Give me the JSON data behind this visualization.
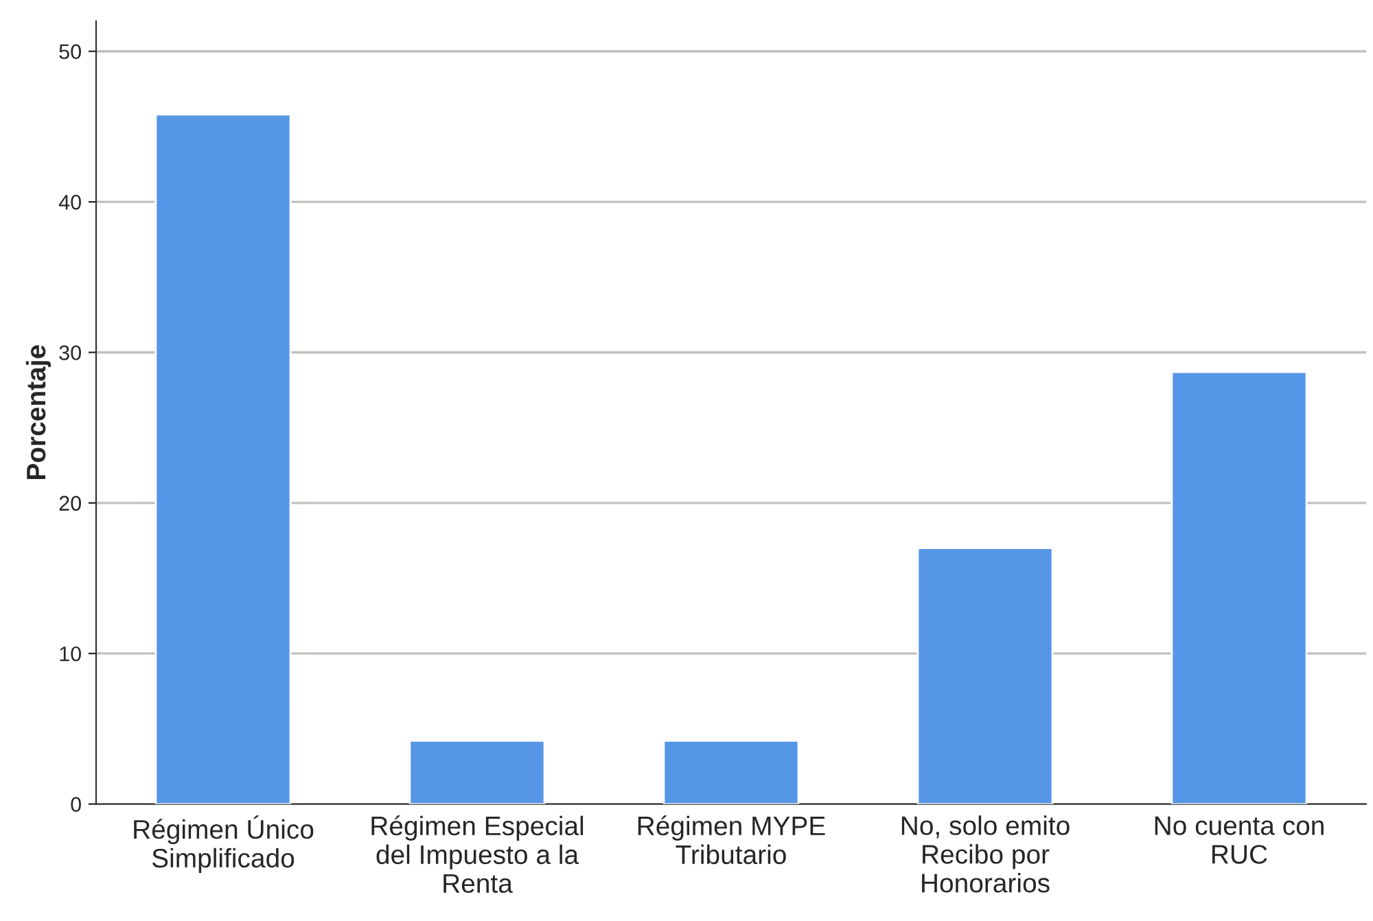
{
  "chart_data": {
    "type": "bar",
    "ylabel": "Porcentaje",
    "categories": [
      "Régimen Único\nSimplificado",
      "Régimen Especial\ndel Impuesto a la\nRenta",
      "Régimen MYPE\nTributario",
      "No, solo emito\nRecibo por\nHonorarios",
      "No cuenta con\nRUC"
    ],
    "values": [
      45.8,
      4.2,
      4.2,
      17.0,
      28.7
    ],
    "color": "#5596e6",
    "ylim": [
      0,
      52
    ],
    "yticks": [
      0,
      10,
      20,
      30,
      40,
      50
    ],
    "grid": "y"
  }
}
